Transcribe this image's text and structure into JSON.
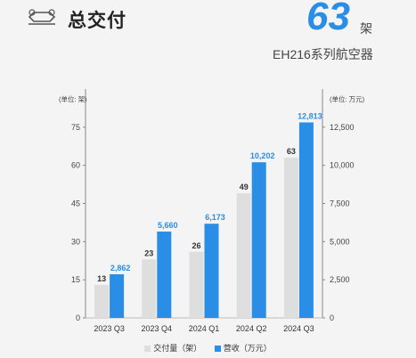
{
  "header": {
    "title": "总交付",
    "big_number": "63",
    "big_unit": "架",
    "subtitle": "EH216系列航空器",
    "logo_icon": "aircraft-icon"
  },
  "colors": {
    "gray": "#dedede",
    "blue": "#2b8ee6"
  },
  "chart_data": {
    "type": "bar",
    "categories": [
      "2023 Q3",
      "2023 Q4",
      "2024 Q1",
      "2024 Q2",
      "2024 Q3"
    ],
    "series": [
      {
        "name": "交付量（架）",
        "axis": "left",
        "values": [
          13,
          23,
          26,
          49,
          63
        ],
        "labels": [
          "13",
          "23",
          "26",
          "49",
          "63"
        ]
      },
      {
        "name": "营收（万元）",
        "axis": "right",
        "values": [
          2862,
          5660,
          6173,
          10202,
          12813
        ],
        "labels": [
          "2,862",
          "5,660",
          "6,173",
          "10,202",
          "12,813"
        ]
      }
    ],
    "left_axis": {
      "unit": "(单位: 架)",
      "ticks": [
        "0",
        "15",
        "30",
        "45",
        "60",
        "75"
      ],
      "ylim": [
        0,
        90
      ]
    },
    "right_axis": {
      "unit": "(单位: 万元)",
      "ticks": [
        "0",
        "2,500",
        "5,000",
        "7,500",
        "10,000",
        "12,500"
      ],
      "ylim": [
        0,
        15000
      ]
    },
    "grid": false,
    "legend_position": "bottom"
  }
}
